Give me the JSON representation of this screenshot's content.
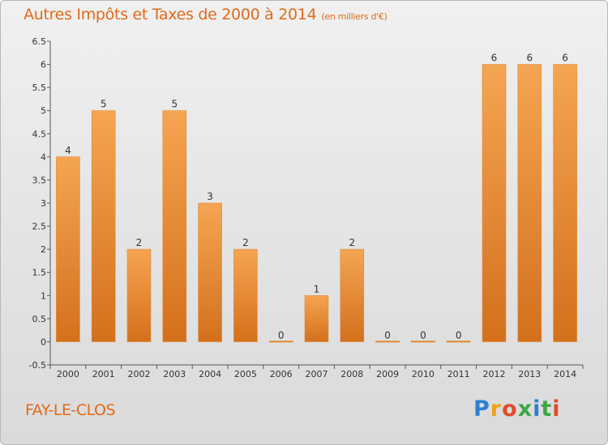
{
  "header": {
    "title": "Autres Impôts et Taxes de 2000 à 2014",
    "unit": "(en milliers d'€)"
  },
  "footer": {
    "place": "FAY-LE-CLOS",
    "logo_text": "Proxiti"
  },
  "colors": {
    "bar": "#f0953f",
    "bar_dark": "#d97420",
    "title": "#e06a1c"
  },
  "chart_data": {
    "type": "bar",
    "title": "Autres Impôts et Taxes de 2000 à 2014",
    "subtitle": "(en milliers d'€)",
    "categories": [
      "2000",
      "2001",
      "2002",
      "2003",
      "2004",
      "2005",
      "2006",
      "2007",
      "2008",
      "2009",
      "2010",
      "2011",
      "2012",
      "2013",
      "2014"
    ],
    "values": [
      4,
      5,
      2,
      5,
      3,
      2,
      0,
      1,
      2,
      0,
      0,
      0,
      6,
      6,
      6
    ],
    "ylim": [
      -0.5,
      6.5
    ],
    "yticks": [
      "-0.5",
      "0",
      "0.5",
      "1",
      "1.5",
      "2",
      "2.5",
      "3",
      "3.5",
      "4",
      "4.5",
      "5",
      "5.5",
      "6",
      "6.5"
    ],
    "ytick_values": [
      -0.5,
      0,
      0.5,
      1,
      1.5,
      2,
      2.5,
      3,
      3.5,
      4,
      4.5,
      5,
      5.5,
      6,
      6.5
    ],
    "xlabel": "",
    "ylabel": "",
    "grid": false
  }
}
